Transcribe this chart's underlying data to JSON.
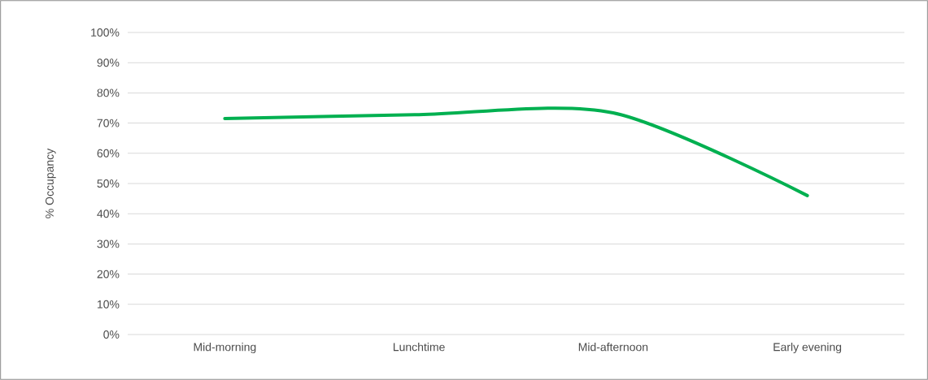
{
  "chart_data": {
    "type": "line",
    "ylabel": "% Occupancy",
    "categories": [
      "Mid-morning",
      "Lunchtime",
      "Mid-afternoon",
      "Early evening"
    ],
    "series": [
      {
        "color": "#00b050",
        "values": [
          71.5,
          72.8,
          73.4,
          46.0
        ]
      }
    ],
    "ylim": [
      0,
      100
    ],
    "yticks": [
      {
        "value": 0,
        "label": "0%"
      },
      {
        "value": 10,
        "label": "10%"
      },
      {
        "value": 20,
        "label": "20%"
      },
      {
        "value": 30,
        "label": "30%"
      },
      {
        "value": 40,
        "label": "40%"
      },
      {
        "value": 50,
        "label": "50%"
      },
      {
        "value": 60,
        "label": "60%"
      },
      {
        "value": 70,
        "label": "70%"
      },
      {
        "value": 80,
        "label": "80%"
      },
      {
        "value": 90,
        "label": "90%"
      },
      {
        "value": 100,
        "label": "100%"
      }
    ],
    "grid": "y"
  }
}
